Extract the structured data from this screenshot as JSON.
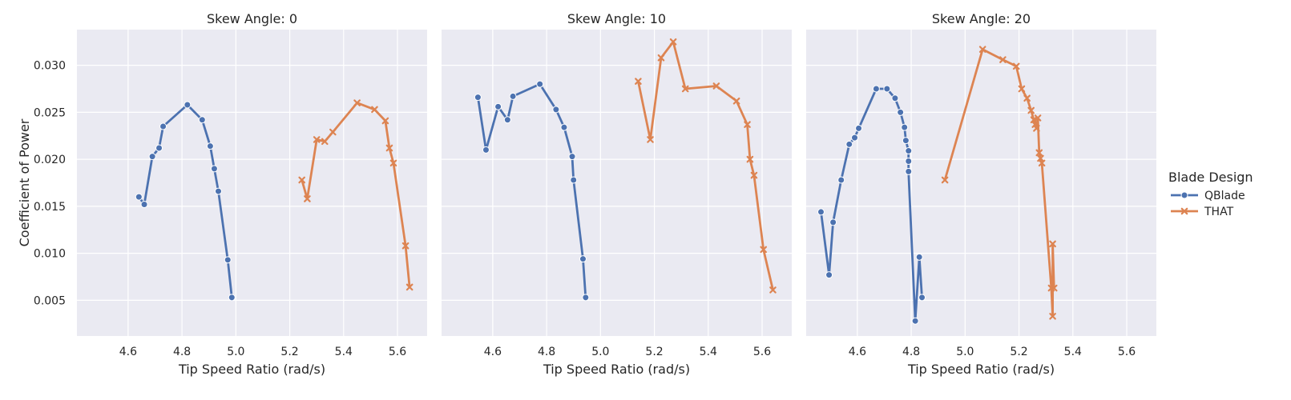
{
  "chart_data": {
    "type": "line",
    "ylabel": "Coefficient of Power",
    "xlim": [
      4.41,
      5.71
    ],
    "ylim": [
      0.0012,
      0.0338
    ],
    "x_ticks": [
      "4.6",
      "4.8",
      "5.0",
      "5.2",
      "5.4",
      "5.6"
    ],
    "y_ticks": [
      "0.005",
      "0.010",
      "0.015",
      "0.020",
      "0.025",
      "0.030"
    ],
    "grid": true,
    "legend": {
      "title": "Blade Design",
      "position": "right",
      "entries": [
        {
          "name": "QBlade",
          "color": "#4c72b0",
          "marker": "circle"
        },
        {
          "name": "THAT",
          "color": "#dd8452",
          "marker": "x"
        }
      ]
    },
    "panels": [
      {
        "title": "Skew Angle: 0",
        "xlabel": "Tip Speed Ratio (rad/s)",
        "series": [
          {
            "name": "QBlade",
            "x": [
              4.64,
              4.66,
              4.69,
              4.715,
              4.73,
              4.82,
              4.875,
              4.905,
              4.92,
              4.935,
              4.97,
              4.985
            ],
            "y": [
              0.016,
              0.0152,
              0.0203,
              0.0212,
              0.0235,
              0.0258,
              0.0242,
              0.0214,
              0.019,
              0.0166,
              0.0093,
              0.0053
            ]
          },
          {
            "name": "THAT",
            "x": [
              5.245,
              5.265,
              5.3,
              5.33,
              5.36,
              5.45,
              5.515,
              5.555,
              5.57,
              5.585,
              5.63,
              5.645
            ],
            "y": [
              0.0178,
              0.0158,
              0.0221,
              0.0219,
              0.0229,
              0.026,
              0.0253,
              0.0241,
              0.0212,
              0.0196,
              0.0108,
              0.0064
            ]
          }
        ]
      },
      {
        "title": "Skew Angle: 10",
        "xlabel": "Tip Speed Ratio (rad/s)",
        "series": [
          {
            "name": "QBlade",
            "x": [
              4.545,
              4.575,
              4.62,
              4.655,
              4.675,
              4.775,
              4.835,
              4.865,
              4.895,
              4.9,
              4.935,
              4.945
            ],
            "y": [
              0.0266,
              0.021,
              0.0256,
              0.0242,
              0.0267,
              0.028,
              0.0253,
              0.0234,
              0.0203,
              0.0178,
              0.0094,
              0.0053
            ]
          },
          {
            "name": "THAT",
            "x": [
              5.14,
              5.185,
              5.225,
              5.27,
              5.315,
              5.43,
              5.505,
              5.545,
              5.555,
              5.57,
              5.605,
              5.64
            ],
            "y": [
              0.0283,
              0.0221,
              0.0308,
              0.0325,
              0.0275,
              0.0278,
              0.0262,
              0.0237,
              0.02,
              0.0183,
              0.0104,
              0.0061
            ]
          }
        ]
      },
      {
        "title": "Skew Angle: 20",
        "xlabel": "Tip Speed Ratio (rad/s)",
        "series": [
          {
            "name": "QBlade",
            "x": [
              4.465,
              4.495,
              4.51,
              4.54,
              4.57,
              4.59,
              4.605,
              4.67,
              4.71,
              4.74,
              4.76,
              4.775,
              4.78,
              4.79,
              4.79,
              4.79,
              4.815,
              4.83,
              4.84
            ],
            "y": [
              0.0144,
              0.0077,
              0.0133,
              0.0178,
              0.0216,
              0.0223,
              0.0233,
              0.0275,
              0.0275,
              0.0265,
              0.025,
              0.0234,
              0.022,
              0.0209,
              0.0198,
              0.0187,
              0.0028,
              0.0096,
              0.0053
            ]
          },
          {
            "name": "THAT",
            "x": [
              4.925,
              5.065,
              5.14,
              5.19,
              5.21,
              5.23,
              5.245,
              5.255,
              5.26,
              5.265,
              5.27,
              5.275,
              5.28,
              5.285,
              5.32,
              5.325,
              5.325,
              5.33
            ],
            "y": [
              0.0178,
              0.0317,
              0.0306,
              0.0299,
              0.0275,
              0.0265,
              0.0252,
              0.0242,
              0.0237,
              0.0233,
              0.0244,
              0.0207,
              0.0201,
              0.0196,
              0.0063,
              0.0033,
              0.011,
              0.0063
            ]
          }
        ]
      }
    ]
  }
}
